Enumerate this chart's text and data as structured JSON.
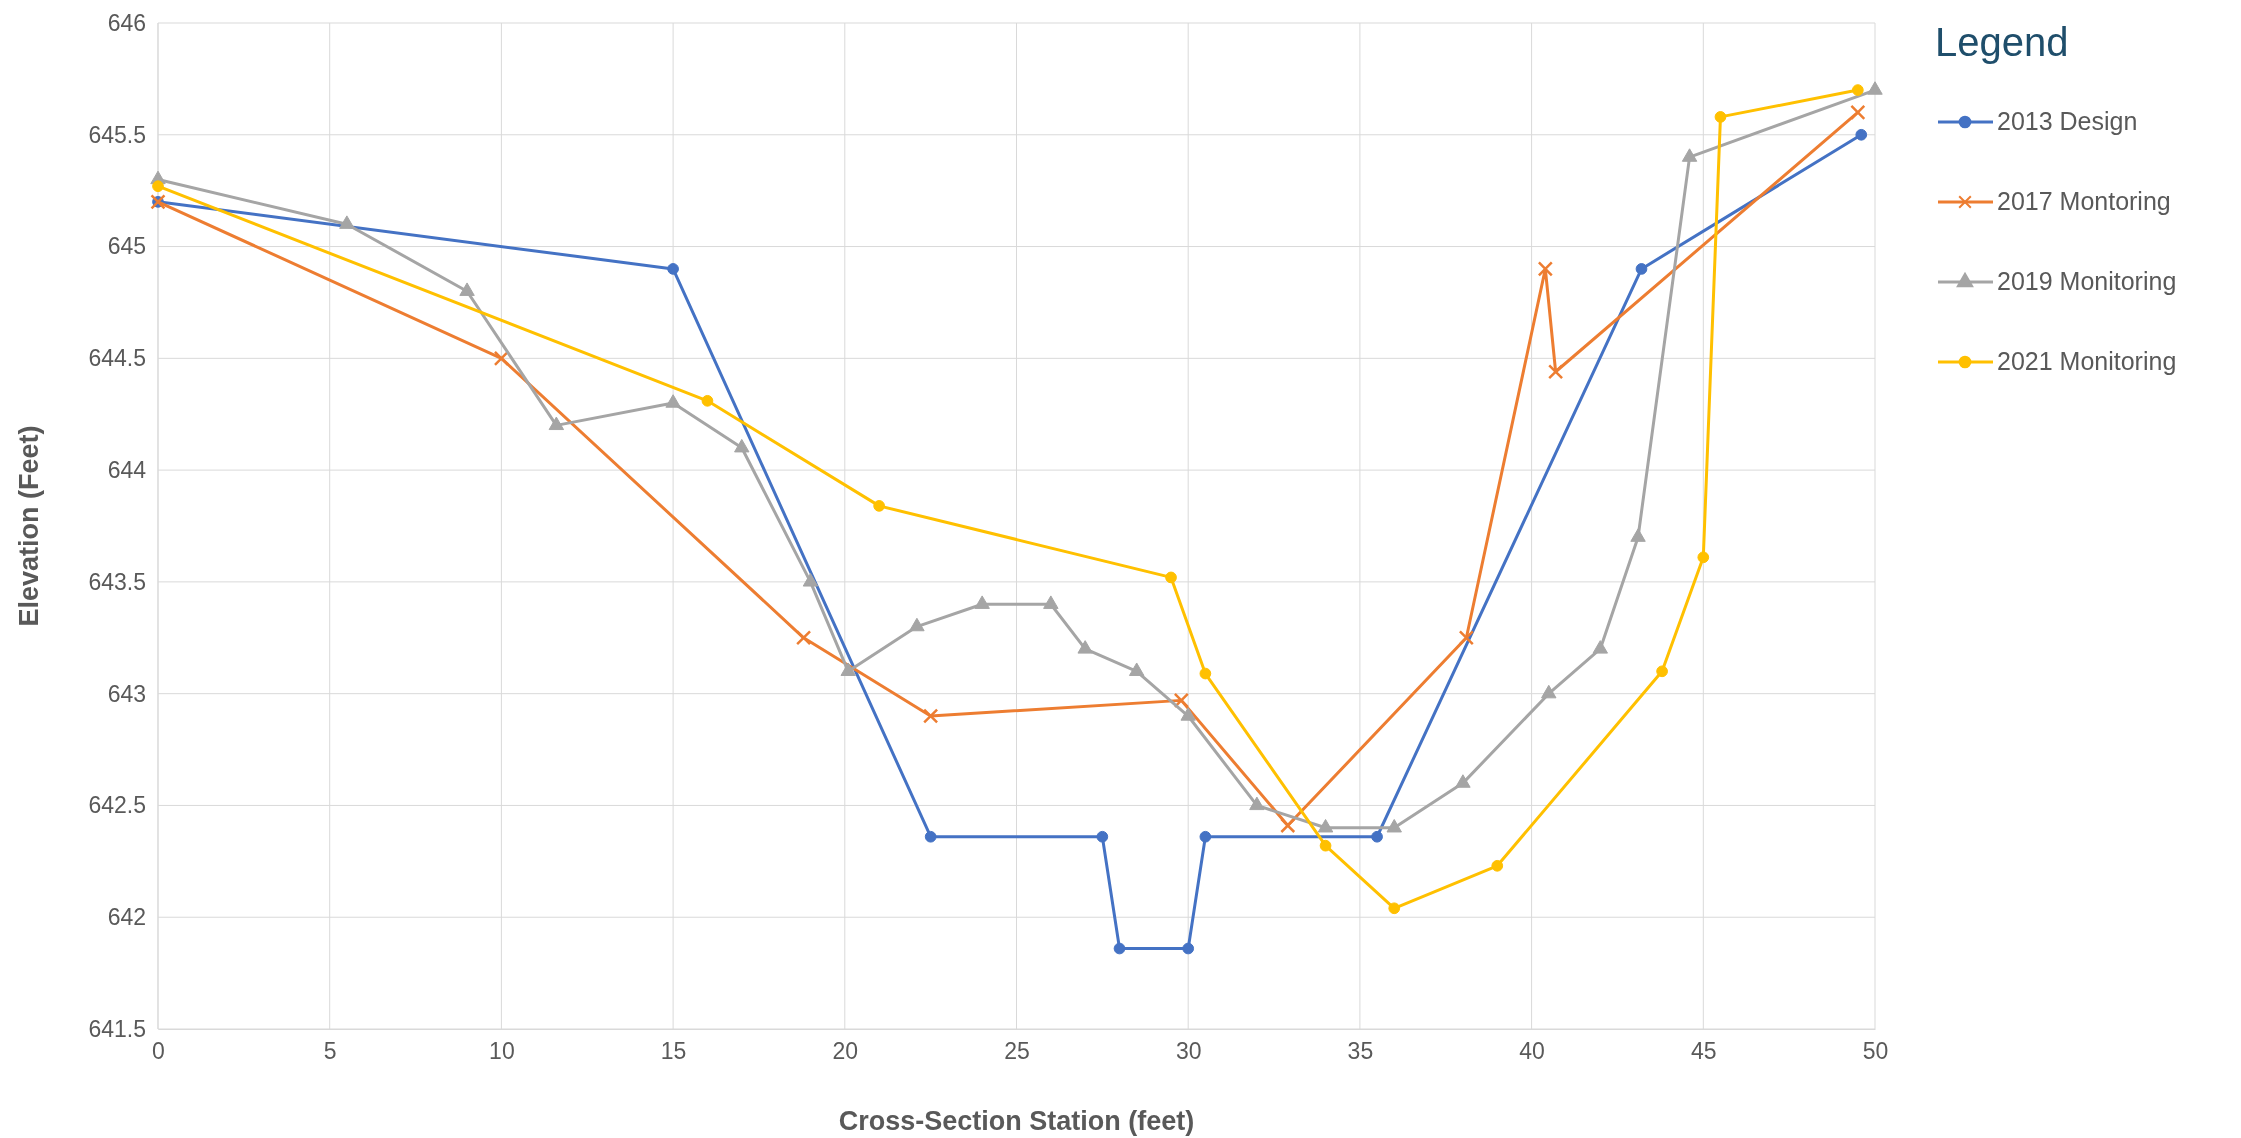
{
  "chart_data": {
    "type": "line",
    "xlabel": "Cross-Section Station (feet)",
    "ylabel": "Elevation (Feet)",
    "legend_title": "Legend",
    "legend": "right",
    "grid": true,
    "xlim": [
      0,
      50
    ],
    "xticks": [
      0,
      5,
      10,
      15,
      20,
      25,
      30,
      35,
      40,
      45,
      50
    ],
    "ylim": [
      641.5,
      646
    ],
    "yticks": [
      641.5,
      642,
      642.5,
      643,
      643.5,
      644,
      644.5,
      645,
      645.5,
      646
    ],
    "series": [
      {
        "name": "2013 Design",
        "color": "#4472c4",
        "marker": "circle",
        "x": [
          0,
          15,
          22.5,
          27.5,
          28,
          30,
          30.5,
          35.5,
          43.2,
          49.6
        ],
        "values": [
          645.2,
          644.9,
          642.36,
          642.36,
          641.86,
          641.86,
          642.36,
          642.36,
          644.9,
          645.5
        ]
      },
      {
        "name": "2017 Montoring",
        "color": "#ed7d31",
        "marker": "cross",
        "x": [
          0,
          10,
          18.8,
          22.5,
          29.8,
          32.9,
          38.1,
          40.4,
          40.7,
          49.5
        ],
        "values": [
          645.2,
          644.5,
          643.25,
          642.9,
          642.97,
          642.41,
          643.25,
          644.9,
          644.44,
          645.6
        ]
      },
      {
        "name": "2019 Monitoring",
        "color": "#a5a5a5",
        "marker": "triangle",
        "x": [
          0,
          5.5,
          9,
          11.6,
          15,
          17,
          19,
          20.1,
          22.1,
          24,
          26,
          27,
          28.5,
          30,
          32,
          34,
          36,
          38,
          40.5,
          42,
          43.1,
          44.6,
          50
        ],
        "values": [
          645.3,
          645.1,
          644.8,
          644.2,
          644.3,
          644.1,
          643.5,
          643.1,
          643.3,
          643.4,
          643.4,
          643.2,
          643.1,
          642.9,
          642.5,
          642.4,
          642.4,
          642.6,
          643,
          643.2,
          643.7,
          645.4,
          645.7
        ]
      },
      {
        "name": "2021 Monitoring",
        "color": "#ffc000",
        "marker": "circle",
        "x": [
          0,
          16,
          21,
          29.5,
          30.5,
          34,
          36,
          39,
          43.8,
          45,
          45.5,
          49.5
        ],
        "values": [
          645.27,
          644.31,
          643.84,
          643.52,
          643.09,
          642.32,
          642.04,
          642.23,
          643.1,
          643.61,
          645.58,
          645.7
        ]
      }
    ]
  }
}
